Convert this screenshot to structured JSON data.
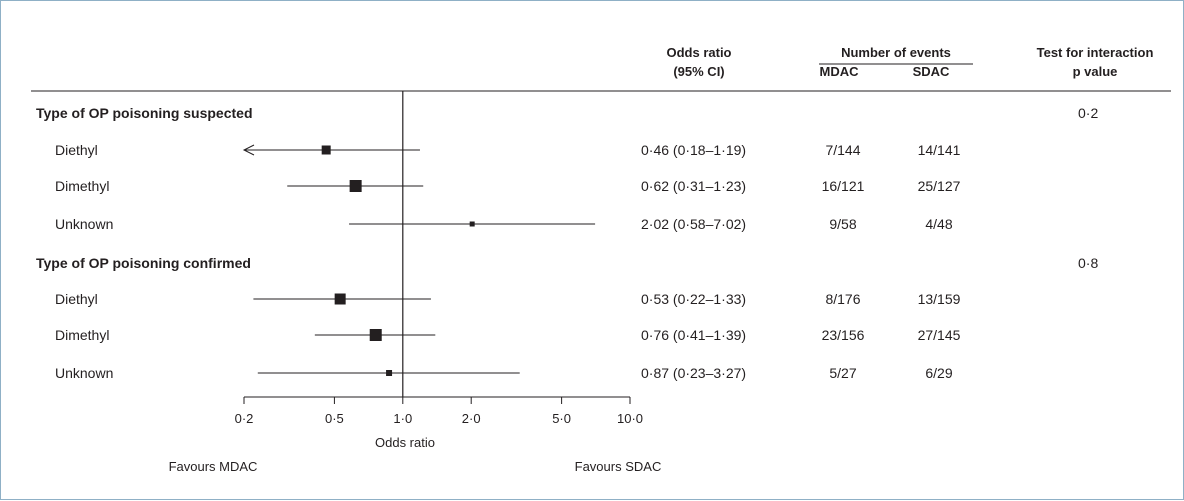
{
  "headers": {
    "or_line1": "Odds ratio",
    "or_line2": "(95% CI)",
    "events_title": "Number of events",
    "events_mdac": "MDAC",
    "events_sdac": "SDAC",
    "interaction_line1": "Test for interaction",
    "interaction_line2": "p value"
  },
  "footer": {
    "favours_left": "Favours MDAC",
    "favours_right": "Favours SDAC"
  },
  "chart_data": {
    "type": "forest",
    "xlabel": "Odds ratio",
    "xscale": "log",
    "xlim": [
      0.2,
      10.0
    ],
    "reference_line": 1.0,
    "xticks": [
      0.2,
      0.5,
      1.0,
      2.0,
      5.0,
      10.0
    ],
    "xtick_labels": [
      "0·2",
      "0·5",
      "1·0",
      "2·0",
      "5·0",
      "10·0"
    ],
    "groups": [
      {
        "label": "Type of OP poisoning suspected",
        "p_interaction": "0·2",
        "rows": [
          {
            "label": "Diethyl",
            "or": 0.46,
            "lo": 0.18,
            "hi": 1.19,
            "ci_text": "0·46 (0·18–1·19)",
            "mdac": "7/144",
            "sdac": "14/141",
            "arrow_left": true
          },
          {
            "label": "Dimethyl",
            "or": 0.62,
            "lo": 0.31,
            "hi": 1.23,
            "ci_text": "0·62 (0·31–1·23)",
            "mdac": "16/121",
            "sdac": "25/127",
            "arrow_left": false
          },
          {
            "label": "Unknown",
            "or": 2.02,
            "lo": 0.58,
            "hi": 7.02,
            "ci_text": "2·02 (0·58–7·02)",
            "mdac": "9/58",
            "sdac": "4/48",
            "arrow_left": false
          }
        ]
      },
      {
        "label": "Type of OP poisoning confirmed",
        "p_interaction": "0·8",
        "rows": [
          {
            "label": "Diethyl",
            "or": 0.53,
            "lo": 0.22,
            "hi": 1.33,
            "ci_text": "0·53 (0·22–1·33)",
            "mdac": "8/176",
            "sdac": "13/159",
            "arrow_left": false
          },
          {
            "label": "Dimethyl",
            "or": 0.76,
            "lo": 0.41,
            "hi": 1.39,
            "ci_text": "0·76 (0·41–1·39)",
            "mdac": "23/156",
            "sdac": "27/145",
            "arrow_left": false
          },
          {
            "label": "Unknown",
            "or": 0.87,
            "lo": 0.23,
            "hi": 3.27,
            "ci_text": "0·87 (0·23–3·27)",
            "mdac": "5/27",
            "sdac": "6/29",
            "arrow_left": false
          }
        ]
      }
    ]
  }
}
